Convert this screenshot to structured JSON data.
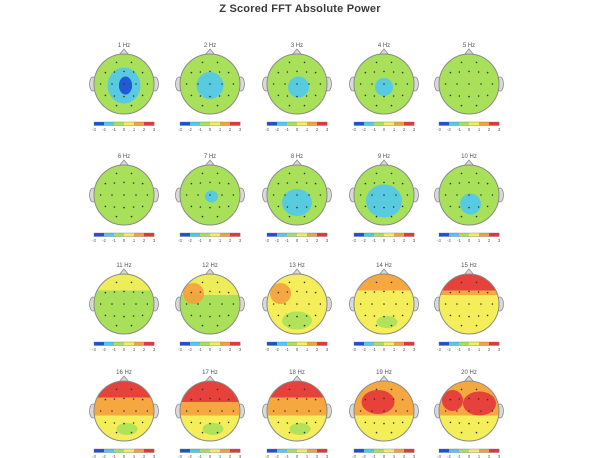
{
  "title": "Z Scored FFT Absolute Power",
  "scale_ticks": [
    "-3",
    "-2",
    "-1",
    "0",
    "1",
    "2",
    "3"
  ],
  "colors": {
    "deep_blue": "#1a4fd6",
    "cyan": "#4fc9f0",
    "green": "#a8e05a",
    "yellow": "#f4ee5a",
    "orange": "#f4a03c",
    "red": "#e4353a",
    "head_outline": "#8a8a8a",
    "electrode": "#333333"
  },
  "maps": [
    {
      "label": "1 Hz",
      "background": "green",
      "regions": [
        {
          "level": "cyan",
          "shape": "blob-center-large"
        },
        {
          "level": "deep_blue",
          "shape": "spot-center"
        }
      ]
    },
    {
      "label": "2 Hz",
      "background": "green",
      "regions": [
        {
          "level": "cyan",
          "shape": "blob-center"
        }
      ]
    },
    {
      "label": "3 Hz",
      "background": "green",
      "regions": [
        {
          "level": "cyan",
          "shape": "blob-center-small"
        }
      ]
    },
    {
      "label": "4 Hz",
      "background": "green",
      "regions": [
        {
          "level": "cyan",
          "shape": "blob-center-faint"
        }
      ]
    },
    {
      "label": "5 Hz",
      "background": "green",
      "regions": []
    },
    {
      "label": "6 Hz",
      "background": "green",
      "regions": []
    },
    {
      "label": "7 Hz",
      "background": "green",
      "regions": [
        {
          "level": "cyan",
          "shape": "spot-center-faint"
        }
      ]
    },
    {
      "label": "8 Hz",
      "background": "green",
      "regions": [
        {
          "level": "cyan",
          "shape": "blob-posterior"
        }
      ]
    },
    {
      "label": "9 Hz",
      "background": "green",
      "regions": [
        {
          "level": "cyan",
          "shape": "blob-posterior-large"
        }
      ]
    },
    {
      "label": "10 Hz",
      "background": "green",
      "regions": [
        {
          "level": "cyan",
          "shape": "blob-posterior-small"
        }
      ]
    },
    {
      "label": "11 Hz",
      "background": "green",
      "regions": [
        {
          "level": "yellow",
          "shape": "band-frontal"
        }
      ]
    },
    {
      "label": "12 Hz",
      "background": "green",
      "regions": [
        {
          "level": "yellow",
          "shape": "band-frontal-large"
        },
        {
          "level": "orange",
          "shape": "spot-left-frontal"
        }
      ]
    },
    {
      "label": "13 Hz",
      "background": "yellow",
      "regions": [
        {
          "level": "orange",
          "shape": "spot-left-frontal"
        },
        {
          "level": "green",
          "shape": "patch-posterior"
        }
      ]
    },
    {
      "label": "14 Hz",
      "background": "yellow",
      "regions": [
        {
          "level": "orange",
          "shape": "band-frontal"
        },
        {
          "level": "green",
          "shape": "patch-posterior-small"
        }
      ]
    },
    {
      "label": "15 Hz",
      "background": "yellow",
      "regions": [
        {
          "level": "orange",
          "shape": "band-frontal-large"
        },
        {
          "level": "red",
          "shape": "band-frontal"
        }
      ]
    },
    {
      "label": "16 Hz",
      "background": "yellow",
      "regions": [
        {
          "level": "orange",
          "shape": "band-middle"
        },
        {
          "level": "red",
          "shape": "band-frontal"
        },
        {
          "level": "green",
          "shape": "patch-posterior-small"
        }
      ]
    },
    {
      "label": "17 Hz",
      "background": "yellow",
      "regions": [
        {
          "level": "orange",
          "shape": "band-middle"
        },
        {
          "level": "red",
          "shape": "band-frontal-large"
        },
        {
          "level": "green",
          "shape": "patch-posterior-small"
        }
      ]
    },
    {
      "label": "18 Hz",
      "background": "yellow",
      "regions": [
        {
          "level": "orange",
          "shape": "band-middle"
        },
        {
          "level": "red",
          "shape": "band-frontal"
        },
        {
          "level": "green",
          "shape": "patch-posterior-small"
        }
      ]
    },
    {
      "label": "19 Hz",
      "background": "yellow",
      "regions": [
        {
          "level": "orange",
          "shape": "band-middle"
        },
        {
          "level": "red",
          "shape": "blob-left-frontal"
        }
      ]
    },
    {
      "label": "20 Hz",
      "background": "yellow",
      "regions": [
        {
          "level": "orange",
          "shape": "band-middle"
        },
        {
          "level": "red",
          "shape": "blob-right-frontal"
        },
        {
          "level": "red",
          "shape": "spot-left-frontal"
        }
      ]
    }
  ]
}
